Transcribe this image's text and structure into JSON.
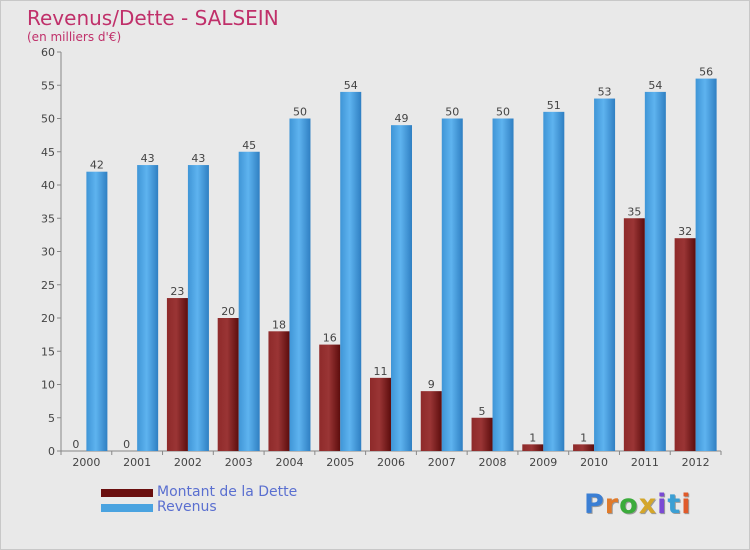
{
  "chart_data": {
    "type": "bar",
    "title": "Revenus/Dette - SALSEIN",
    "subtitle": "(en milliers d'€)",
    "categories": [
      "2000",
      "2001",
      "2002",
      "2003",
      "2004",
      "2005",
      "2006",
      "2007",
      "2008",
      "2009",
      "2010",
      "2011",
      "2012"
    ],
    "series": [
      {
        "name": "Montant de la Dette",
        "color": "#7a1a1a",
        "values": [
          0,
          0,
          23,
          20,
          18,
          16,
          11,
          9,
          5,
          1,
          1,
          35,
          32
        ]
      },
      {
        "name": "Revenus",
        "color": "#4aa3e0",
        "values": [
          42,
          43,
          43,
          45,
          50,
          54,
          49,
          50,
          50,
          51,
          53,
          54,
          56
        ]
      }
    ],
    "ylim": [
      0,
      60
    ],
    "yticks": [
      0,
      5,
      10,
      15,
      20,
      25,
      30,
      35,
      40,
      45,
      50,
      55,
      60
    ],
    "grid": false,
    "legend_position": "bottom-left"
  },
  "logo": {
    "letters": [
      "P",
      "r",
      "o",
      "x",
      "i",
      "t",
      "i"
    ],
    "colors": [
      "#3b7fd4",
      "#e07a2a",
      "#3bab3b",
      "#d4a62a",
      "#7a4ad4",
      "#3b9fd4",
      "#e05a2a"
    ]
  }
}
